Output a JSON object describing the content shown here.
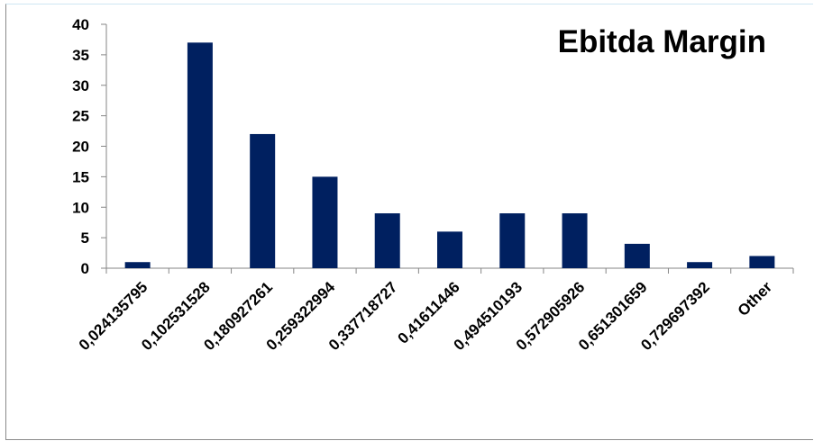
{
  "chart_data": {
    "type": "bar",
    "title": "Ebitda Margin",
    "xlabel": "",
    "ylabel": "",
    "categories": [
      "0,024135795",
      "0,102531528",
      "0,180927261",
      "0,259322994",
      "0,337718727",
      "0,41611446",
      "0,494510193",
      "0,572905926",
      "0,651301659",
      "0,729697392",
      "Other"
    ],
    "values": [
      1,
      37,
      22,
      15,
      9,
      6,
      9,
      9,
      4,
      1,
      2
    ],
    "ylim": [
      0,
      40
    ],
    "yticks": [
      0,
      5,
      10,
      15,
      20,
      25,
      30,
      35,
      40
    ],
    "grid": false,
    "legend": "none",
    "bar_color": "#002060",
    "axis_color": "#868686"
  }
}
